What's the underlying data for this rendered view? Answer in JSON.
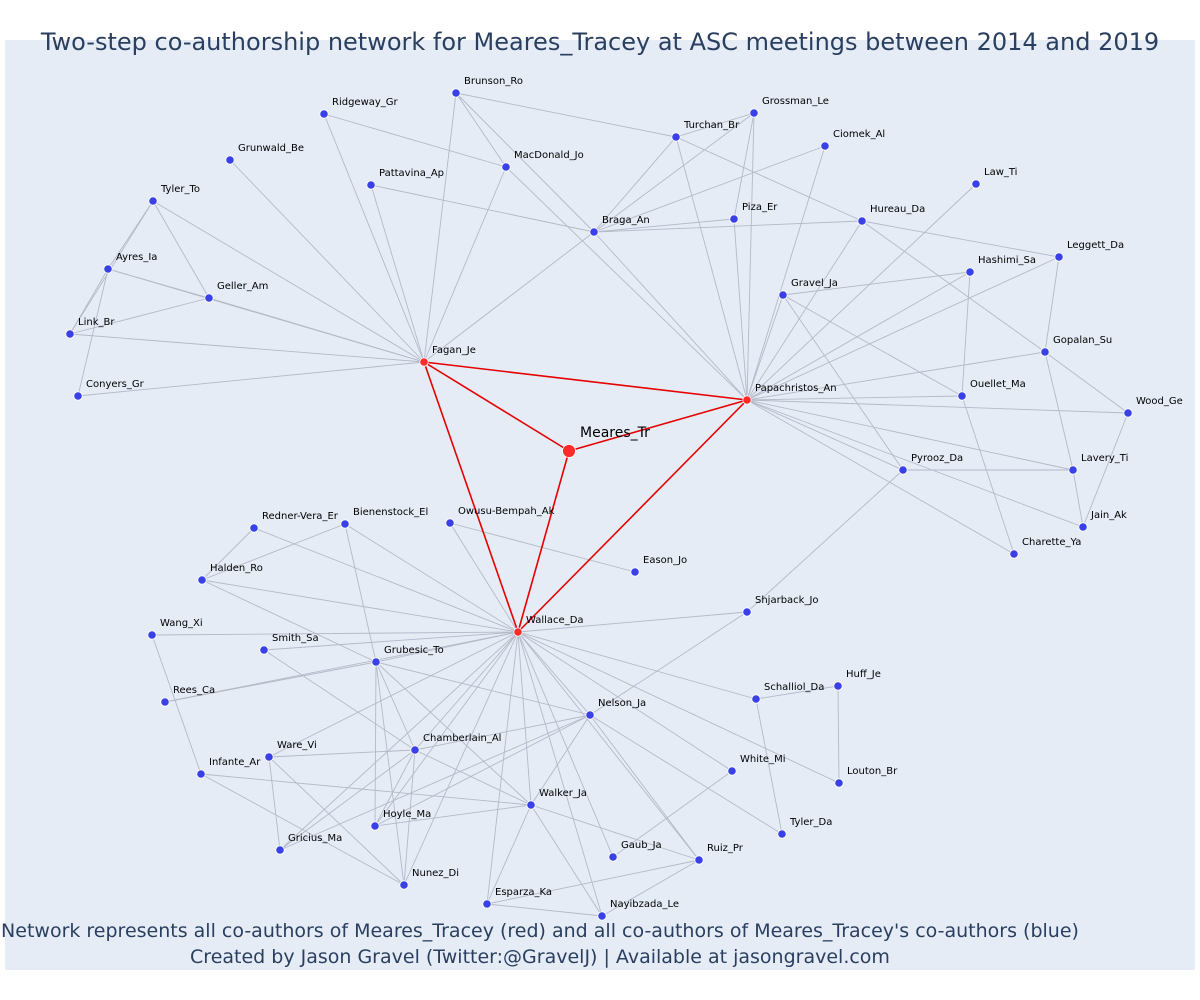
{
  "title": "Two-step co-authorship network for Meares_Tracey at ASC meetings between 2014 and 2019",
  "caption": {
    "line1": "Network represents all co-authors of Meares_Tracey (red) and all co-authors of Meares_Tracey's co-authors (blue)",
    "line2": "Created by Jason Gravel (Twitter:@GravelJ) | Available at jasongravel.com"
  },
  "colors": {
    "ego": "#ff2a2a",
    "first_step": "#ff2a2a",
    "second_step": "#3a40e8",
    "ego_edge": "#e60000",
    "edge": "#b4b9c8"
  },
  "chart_data": {
    "type": "network",
    "ego": "Meares_Tr",
    "nodes": [
      {
        "id": "Meares_Tr",
        "group": "ego"
      },
      {
        "id": "Fagan_Je",
        "group": "first"
      },
      {
        "id": "Papachristos_An",
        "group": "first"
      },
      {
        "id": "Wallace_Da",
        "group": "first"
      },
      {
        "id": "Brunson_Ro",
        "group": "second"
      },
      {
        "id": "Ridgeway_Gr",
        "group": "second"
      },
      {
        "id": "Grunwald_Be",
        "group": "second"
      },
      {
        "id": "Pattavina_Ap",
        "group": "second"
      },
      {
        "id": "MacDonald_Jo",
        "group": "second"
      },
      {
        "id": "Tyler_To",
        "group": "second"
      },
      {
        "id": "Ayres_Ia",
        "group": "second"
      },
      {
        "id": "Geller_Am",
        "group": "second"
      },
      {
        "id": "Link_Br",
        "group": "second"
      },
      {
        "id": "Conyers_Gr",
        "group": "second"
      },
      {
        "id": "Turchan_Br",
        "group": "second"
      },
      {
        "id": "Grossman_Le",
        "group": "second"
      },
      {
        "id": "Ciomek_Al",
        "group": "second"
      },
      {
        "id": "Braga_An",
        "group": "second"
      },
      {
        "id": "Piza_Er",
        "group": "second"
      },
      {
        "id": "Law_Ti",
        "group": "second"
      },
      {
        "id": "Hureau_Da",
        "group": "second"
      },
      {
        "id": "Leggett_Da",
        "group": "second"
      },
      {
        "id": "Hashimi_Sa",
        "group": "second"
      },
      {
        "id": "Gravel_Ja",
        "group": "second"
      },
      {
        "id": "Gopalan_Su",
        "group": "second"
      },
      {
        "id": "Ouellet_Ma",
        "group": "second"
      },
      {
        "id": "Wood_Ge",
        "group": "second"
      },
      {
        "id": "Pyrooz_Da",
        "group": "second"
      },
      {
        "id": "Lavery_Ti",
        "group": "second"
      },
      {
        "id": "Jain_Ak",
        "group": "second"
      },
      {
        "id": "Charette_Ya",
        "group": "second"
      },
      {
        "id": "Redner-Vera_Er",
        "group": "second"
      },
      {
        "id": "Bienenstock_El",
        "group": "second"
      },
      {
        "id": "Owusu-Bempah_Ak",
        "group": "second"
      },
      {
        "id": "Eason_Jo",
        "group": "second"
      },
      {
        "id": "Halden_Ro",
        "group": "second"
      },
      {
        "id": "Wang_Xi",
        "group": "second"
      },
      {
        "id": "Smith_Sa",
        "group": "second"
      },
      {
        "id": "Grubesic_To",
        "group": "second"
      },
      {
        "id": "Shjarback_Jo",
        "group": "second"
      },
      {
        "id": "Rees_Ca",
        "group": "second"
      },
      {
        "id": "Huff_Je",
        "group": "second"
      },
      {
        "id": "Schalliol_Da",
        "group": "second"
      },
      {
        "id": "Nelson_Ja",
        "group": "second"
      },
      {
        "id": "Ware_Vi",
        "group": "second"
      },
      {
        "id": "Chamberlain_Al",
        "group": "second"
      },
      {
        "id": "Infante_Ar",
        "group": "second"
      },
      {
        "id": "White_Mi",
        "group": "second"
      },
      {
        "id": "Louton_Br",
        "group": "second"
      },
      {
        "id": "Walker_Ja",
        "group": "second"
      },
      {
        "id": "Hoyle_Ma",
        "group": "second"
      },
      {
        "id": "Gricius_Ma",
        "group": "second"
      },
      {
        "id": "Tyler_Da",
        "group": "second"
      },
      {
        "id": "Gaub_Ja",
        "group": "second"
      },
      {
        "id": "Ruiz_Pr",
        "group": "second"
      },
      {
        "id": "Nunez_Di",
        "group": "second"
      },
      {
        "id": "Esparza_Ka",
        "group": "second"
      },
      {
        "id": "Nayibzada_Le",
        "group": "second"
      }
    ],
    "edges": [
      [
        "Meares_Tr",
        "Fagan_Je"
      ],
      [
        "Meares_Tr",
        "Papachristos_An"
      ],
      [
        "Meares_Tr",
        "Wallace_Da"
      ],
      [
        "Fagan_Je",
        "Papachristos_An"
      ],
      [
        "Fagan_Je",
        "Wallace_Da"
      ],
      [
        "Papachristos_An",
        "Wallace_Da"
      ],
      [
        "Fagan_Je",
        "Brunson_Ro"
      ],
      [
        "Fagan_Je",
        "Ridgeway_Gr"
      ],
      [
        "Fagan_Je",
        "Grunwald_Be"
      ],
      [
        "Fagan_Je",
        "Pattavina_Ap"
      ],
      [
        "Fagan_Je",
        "MacDonald_Jo"
      ],
      [
        "Fagan_Je",
        "Tyler_To"
      ],
      [
        "Fagan_Je",
        "Geller_Am"
      ],
      [
        "Fagan_Je",
        "Link_Br"
      ],
      [
        "Fagan_Je",
        "Conyers_Gr"
      ],
      [
        "Fagan_Je",
        "Braga_An"
      ],
      [
        "Fagan_Je",
        "Ayres_Ia"
      ],
      [
        "Tyler_To",
        "Ayres_Ia"
      ],
      [
        "Tyler_To",
        "Geller_Am"
      ],
      [
        "Tyler_To",
        "Link_Br"
      ],
      [
        "Ayres_Ia",
        "Geller_Am"
      ],
      [
        "Ayres_Ia",
        "Link_Br"
      ],
      [
        "Ayres_Ia",
        "Conyers_Gr"
      ],
      [
        "Geller_Am",
        "Link_Br"
      ],
      [
        "Ridgeway_Gr",
        "MacDonald_Jo"
      ],
      [
        "Brunson_Ro",
        "MacDonald_Jo"
      ],
      [
        "Brunson_Ro",
        "Turchan_Br"
      ],
      [
        "Brunson_Ro",
        "Braga_An"
      ],
      [
        "Pattavina_Ap",
        "Braga_An"
      ],
      [
        "MacDonald_Jo",
        "Papachristos_An"
      ],
      [
        "Braga_An",
        "Turchan_Br"
      ],
      [
        "Braga_An",
        "Grossman_Le"
      ],
      [
        "Braga_An",
        "Ciomek_Al"
      ],
      [
        "Braga_An",
        "Piza_Er"
      ],
      [
        "Braga_An",
        "Hureau_Da"
      ],
      [
        "Braga_An",
        "Papachristos_An"
      ],
      [
        "Turchan_Br",
        "Grossman_Le"
      ],
      [
        "Turchan_Br",
        "Hureau_Da"
      ],
      [
        "Turchan_Br",
        "Papachristos_An"
      ],
      [
        "Grossman_Le",
        "Piza_Er"
      ],
      [
        "Grossman_Le",
        "Papachristos_An"
      ],
      [
        "Ciomek_Al",
        "Papachristos_An"
      ],
      [
        "Piza_Er",
        "Papachristos_An"
      ],
      [
        "Law_Ti",
        "Papachristos_An"
      ],
      [
        "Hureau_Da",
        "Papachristos_An"
      ],
      [
        "Hureau_Da",
        "Leggett_Da"
      ],
      [
        "Hureau_Da",
        "Gopalan_Su"
      ],
      [
        "Papachristos_An",
        "Gravel_Ja"
      ],
      [
        "Papachristos_An",
        "Hashimi_Sa"
      ],
      [
        "Papachristos_An",
        "Leggett_Da"
      ],
      [
        "Papachristos_An",
        "Gopalan_Su"
      ],
      [
        "Papachristos_An",
        "Ouellet_Ma"
      ],
      [
        "Papachristos_An",
        "Wood_Ge"
      ],
      [
        "Papachristos_An",
        "Pyrooz_Da"
      ],
      [
        "Papachristos_An",
        "Lavery_Ti"
      ],
      [
        "Papachristos_An",
        "Jain_Ak"
      ],
      [
        "Papachristos_An",
        "Charette_Ya"
      ],
      [
        "Gravel_Ja",
        "Hashimi_Sa"
      ],
      [
        "Gravel_Ja",
        "Ouellet_Ma"
      ],
      [
        "Gravel_Ja",
        "Pyrooz_Da"
      ],
      [
        "Hashimi_Sa",
        "Ouellet_Ma"
      ],
      [
        "Leggett_Da",
        "Gopalan_Su"
      ],
      [
        "Gopalan_Su",
        "Wood_Ge"
      ],
      [
        "Gopalan_Su",
        "Lavery_Ti"
      ],
      [
        "Ouellet_Ma",
        "Charette_Ya"
      ],
      [
        "Wood_Ge",
        "Jain_Ak"
      ],
      [
        "Pyrooz_Da",
        "Lavery_Ti"
      ],
      [
        "Lavery_Ti",
        "Jain_Ak"
      ],
      [
        "Pyrooz_Da",
        "Shjarback_Jo"
      ],
      [
        "Wallace_Da",
        "Redner-Vera_Er"
      ],
      [
        "Wallace_Da",
        "Bienenstock_El"
      ],
      [
        "Wallace_Da",
        "Owusu-Bempah_Ak"
      ],
      [
        "Wallace_Da",
        "Halden_Ro"
      ],
      [
        "Wallace_Da",
        "Wang_Xi"
      ],
      [
        "Wallace_Da",
        "Smith_Sa"
      ],
      [
        "Wallace_Da",
        "Grubesic_To"
      ],
      [
        "Wallace_Da",
        "Shjarback_Jo"
      ],
      [
        "Wallace_Da",
        "Rees_Ca"
      ],
      [
        "Wallace_Da",
        "Schalliol_Da"
      ],
      [
        "Wallace_Da",
        "Nelson_Ja"
      ],
      [
        "Wallace_Da",
        "Ware_Vi"
      ],
      [
        "Wallace_Da",
        "Chamberlain_Al"
      ],
      [
        "Wallace_Da",
        "White_Mi"
      ],
      [
        "Wallace_Da",
        "Louton_Br"
      ],
      [
        "Wallace_Da",
        "Walker_Ja"
      ],
      [
        "Wallace_Da",
        "Hoyle_Ma"
      ],
      [
        "Wallace_Da",
        "Gricius_Ma"
      ],
      [
        "Wallace_Da",
        "Gaub_Ja"
      ],
      [
        "Wallace_Da",
        "Ruiz_Pr"
      ],
      [
        "Wallace_Da",
        "Nunez_Di"
      ],
      [
        "Wallace_Da",
        "Esparza_Ka"
      ],
      [
        "Wallace_Da",
        "Nayibzada_Le"
      ],
      [
        "Owusu-Bempah_Ak",
        "Eason_Jo"
      ],
      [
        "Redner-Vera_Er",
        "Halden_Ro"
      ],
      [
        "Bienenstock_El",
        "Halden_Ro"
      ],
      [
        "Bienenstock_El",
        "Grubesic_To"
      ],
      [
        "Halden_Ro",
        "Grubesic_To"
      ],
      [
        "Wang_Xi",
        "Infante_Ar"
      ],
      [
        "Smith_Sa",
        "Chamberlain_Al"
      ],
      [
        "Grubesic_To",
        "Rees_Ca"
      ],
      [
        "Grubesic_To",
        "Nelson_Ja"
      ],
      [
        "Grubesic_To",
        "Chamberlain_Al"
      ],
      [
        "Grubesic_To",
        "Walker_Ja"
      ],
      [
        "Grubesic_To",
        "Hoyle_Ma"
      ],
      [
        "Grubesic_To",
        "Nunez_Di"
      ],
      [
        "Shjarback_Jo",
        "Nelson_Ja"
      ],
      [
        "Huff_Je",
        "Schalliol_Da"
      ],
      [
        "Huff_Je",
        "Louton_Br"
      ],
      [
        "Schalliol_Da",
        "Tyler_Da"
      ],
      [
        "Nelson_Ja",
        "Chamberlain_Al"
      ],
      [
        "Nelson_Ja",
        "Walker_Ja"
      ],
      [
        "Nelson_Ja",
        "Tyler_Da"
      ],
      [
        "Nelson_Ja",
        "Ruiz_Pr"
      ],
      [
        "Nelson_Ja",
        "Gricius_Ma"
      ],
      [
        "Nelson_Ja",
        "Hoyle_Ma"
      ],
      [
        "Ware_Vi",
        "Chamberlain_Al"
      ],
      [
        "Ware_Vi",
        "Gricius_Ma"
      ],
      [
        "Ware_Vi",
        "Nunez_Di"
      ],
      [
        "Chamberlain_Al",
        "Walker_Ja"
      ],
      [
        "Chamberlain_Al",
        "Hoyle_Ma"
      ],
      [
        "Chamberlain_Al",
        "Gricius_Ma"
      ],
      [
        "Chamberlain_Al",
        "Nunez_Di"
      ],
      [
        "Infante_Ar",
        "Walker_Ja"
      ],
      [
        "Infante_Ar",
        "Nunez_Di"
      ],
      [
        "White_Mi",
        "Gaub_Ja"
      ],
      [
        "Walker_Ja",
        "Hoyle_Ma"
      ],
      [
        "Walker_Ja",
        "Esparza_Ka"
      ],
      [
        "Walker_Ja",
        "Nayibzada_Le"
      ],
      [
        "Walker_Ja",
        "Ruiz_Pr"
      ],
      [
        "Ruiz_Pr",
        "Esparza_Ka"
      ],
      [
        "Ruiz_Pr",
        "Nayibzada_Le"
      ],
      [
        "Esparza_Ka",
        "Nayibzada_Le"
      ]
    ]
  }
}
